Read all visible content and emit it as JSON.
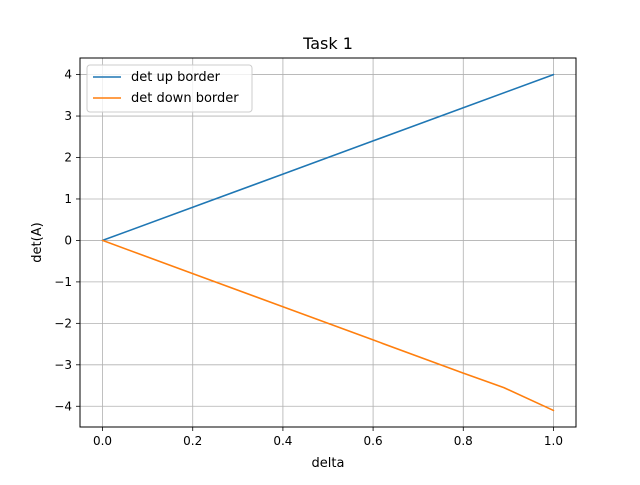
{
  "chart_data": {
    "type": "line",
    "title": "Task 1",
    "xlabel": "delta",
    "ylabel": "det(A)",
    "xlim": [
      -0.05,
      1.05
    ],
    "ylim": [
      -4.5,
      4.4
    ],
    "xticks": [
      0.0,
      0.2,
      0.4,
      0.6,
      0.8,
      1.0
    ],
    "xtick_labels": [
      "0.0",
      "0.2",
      "0.4",
      "0.6",
      "0.8",
      "1.0"
    ],
    "yticks": [
      -4,
      -3,
      -2,
      -1,
      0,
      1,
      2,
      3,
      4
    ],
    "ytick_labels": [
      "−4",
      "−3",
      "−2",
      "−1",
      "0",
      "1",
      "2",
      "3",
      "4"
    ],
    "grid": true,
    "legend_position": "top-left",
    "series": [
      {
        "name": "det up border",
        "color": "#1f77b4",
        "x": [
          0.0,
          0.2,
          0.4,
          0.6,
          0.8,
          1.0
        ],
        "y": [
          0.0,
          0.8,
          1.6,
          2.4,
          3.2,
          4.0
        ]
      },
      {
        "name": "det down border",
        "color": "#ff7f0e",
        "x": [
          0.0,
          0.2,
          0.4,
          0.6,
          0.8,
          0.89,
          1.0
        ],
        "y": [
          0.0,
          -0.8,
          -1.6,
          -2.4,
          -3.2,
          -3.55,
          -4.1
        ]
      }
    ]
  }
}
